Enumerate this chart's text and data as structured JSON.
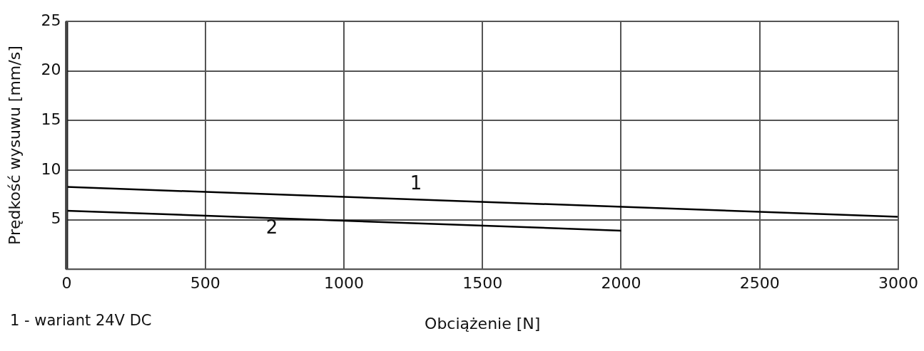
{
  "chart_data": {
    "type": "line",
    "xlabel": "Obciążenie [N]",
    "ylabel": "Prędkość wysuwu [mm/s]",
    "annotations": [
      "1 - wariant 24V DC"
    ],
    "series": [
      {
        "name": "1",
        "color": "#000000",
        "x": [
          0,
          3000
        ],
        "values": [
          8.3,
          5.3
        ]
      },
      {
        "name": "2",
        "color": "#000000",
        "x": [
          0,
          2000
        ],
        "values": [
          5.9,
          3.9
        ]
      }
    ],
    "xlim": [
      0,
      3000
    ],
    "xticks": [
      0,
      500,
      1000,
      1500,
      2000,
      2500,
      3000
    ],
    "ylim": [
      0,
      25
    ],
    "yticks": [
      {
        "value": 0,
        "label": null
      },
      5,
      10,
      15,
      20,
      25
    ],
    "grid": true,
    "legend": false,
    "marker": "none",
    "line_style": "solid"
  }
}
